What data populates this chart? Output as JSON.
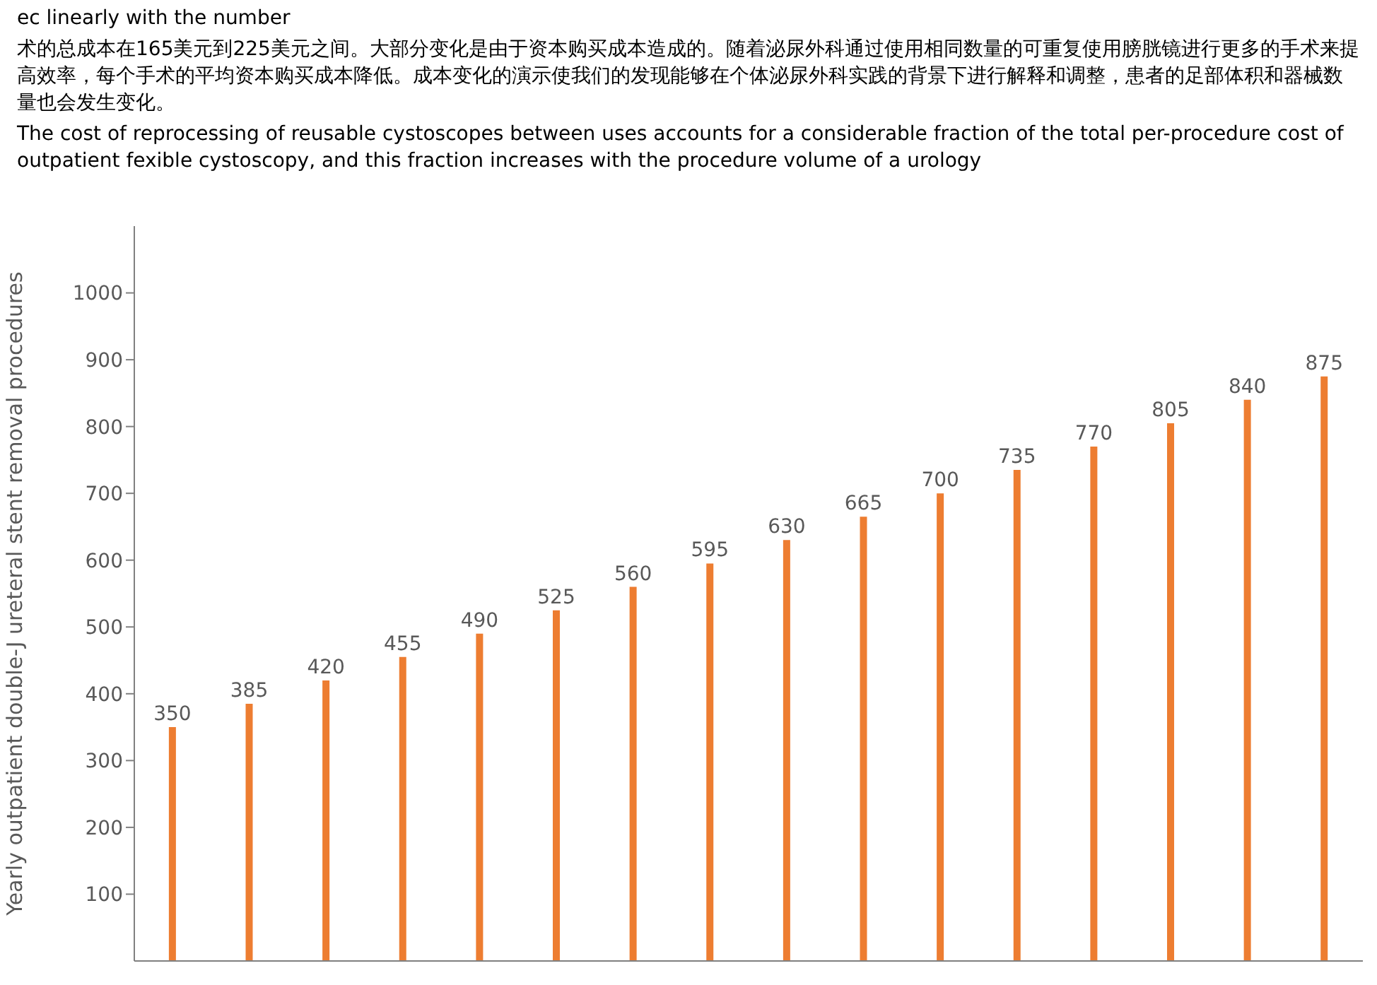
{
  "chart_data": {
    "type": "bar",
    "ylabel": "Yearly outpatient double-J ureteral stent removal procedures",
    "categories": [
      null,
      null,
      null,
      null,
      null,
      null,
      null,
      null,
      null,
      null,
      null,
      null,
      null,
      null,
      null,
      null
    ],
    "values": [
      350,
      385,
      420,
      455,
      490,
      525,
      560,
      595,
      630,
      665,
      700,
      735,
      770,
      805,
      840,
      875
    ],
    "color": "#ed7d31",
    "ylim": [
      0,
      1100
    ],
    "yticks": [
      100,
      200,
      300,
      400,
      500,
      600,
      700,
      800,
      900,
      1000
    ],
    "data_labels": true,
    "grid": false,
    "legend": false,
    "annotations": [
      "ec linearly with the number",
      "术的总成本在165美元到225美元之间。大部分变化是由于资本购买成本造成的。随着泌尿外科通过使用相同数量的可重复使用膀胱镜进行更多的手术来提高效率，每个手术的平均资本购买成本降低。成本变化的演示使我们的发现能够在个体泌尿外科实践的背景下进行解释和调整，患者的足部体积和器械数量也会发生变化。",
      "The cost of reprocessing of reusable cystoscopes between uses accounts for a considerable fraction of the total per-procedure cost of outpatient fexible cystoscopy, and this fraction increases with the procedure volume of a urology"
    ]
  }
}
